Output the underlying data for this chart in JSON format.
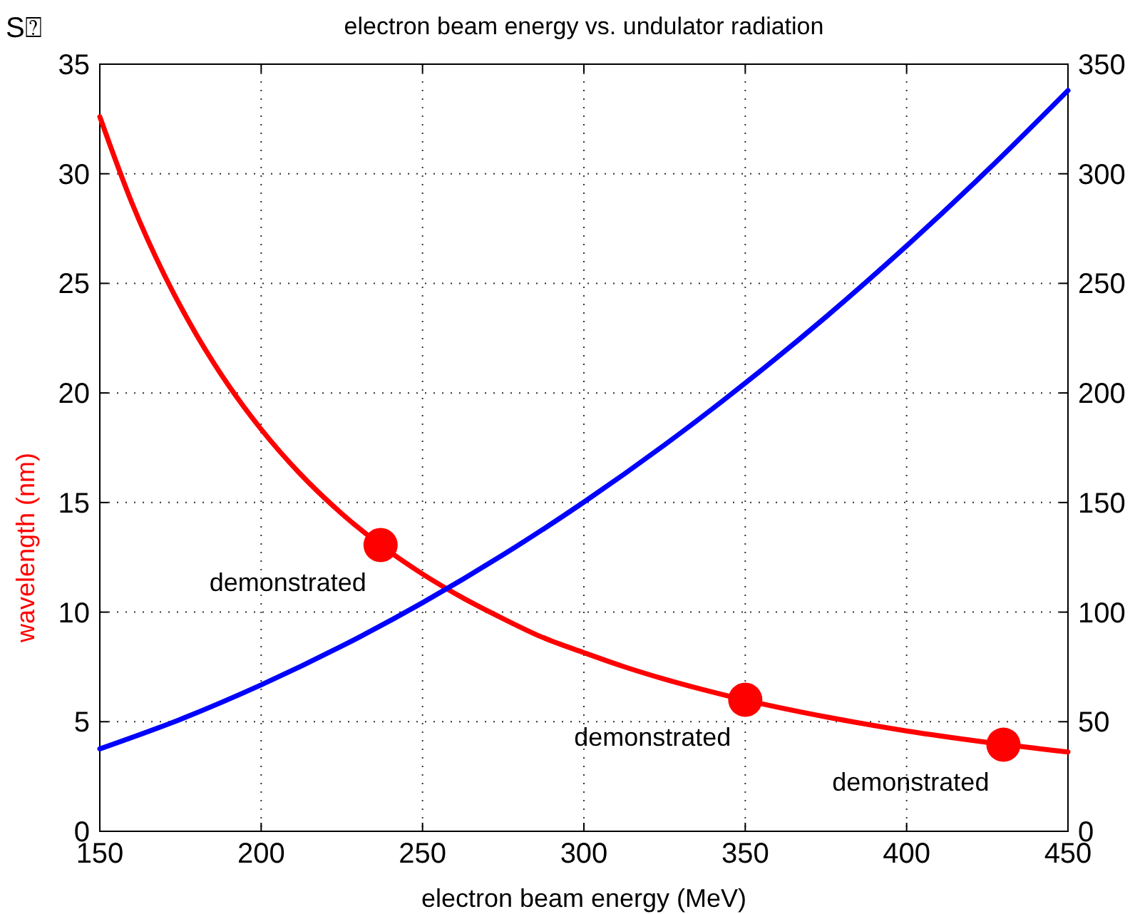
{
  "chart_data": {
    "type": "line",
    "title": "electron beam energy vs. undulator radiation",
    "xlabel": "electron beam energy (MeV)",
    "ylabel": "wavelength (nm)",
    "xlim": [
      150,
      450
    ],
    "xticks": [
      150,
      200,
      250,
      300,
      350,
      400,
      450
    ],
    "ylim": [
      0,
      35
    ],
    "yticks": [
      0,
      5,
      10,
      15,
      20,
      25,
      30,
      35
    ],
    "y2lim": [
      0,
      350
    ],
    "y2ticks": [
      0,
      50,
      100,
      150,
      200,
      250,
      300,
      350
    ],
    "grid": true,
    "line_style": "solid",
    "marker": "none",
    "series": [
      {
        "color": "#ff0000",
        "x": [
          150,
          160,
          170,
          180,
          190,
          200,
          212,
          225,
          237,
          250,
          262,
          275,
          287,
          300,
          312,
          325,
          337,
          350,
          375,
          400,
          425,
          450
        ],
        "values": [
          32.6,
          28.65,
          25.38,
          22.64,
          20.32,
          18.34,
          16.32,
          14.49,
          13.06,
          11.74,
          10.69,
          9.7,
          8.86,
          8.15,
          7.53,
          6.94,
          6.46,
          5.99,
          5.22,
          4.58,
          4.06,
          3.62
        ]
      },
      {
        "color": "#0000ff",
        "axis": "y2",
        "x": [
          150,
          175,
          200,
          225,
          250,
          275,
          300,
          325,
          350,
          375,
          400,
          425,
          450
        ],
        "values": [
          37.6,
          51.1,
          66.8,
          84.5,
          104.3,
          126.2,
          150.2,
          176.3,
          204.5,
          234.7,
          267.1,
          301.5,
          338
        ]
      },
      {
        "type": "scatter",
        "marker": "circle",
        "color": "#ff0000",
        "x": [
          237,
          350,
          430
        ],
        "values": [
          13.06,
          6.0,
          3.95
        ]
      }
    ],
    "annotations": [
      "S⍰",
      {
        "text": "demonstrated",
        "x": 237,
        "y": 13.06
      },
      {
        "text": "demonstrated",
        "x": 350,
        "y": 6.0
      },
      {
        "text": "demonstrated",
        "x": 430,
        "y": 3.95
      }
    ]
  }
}
